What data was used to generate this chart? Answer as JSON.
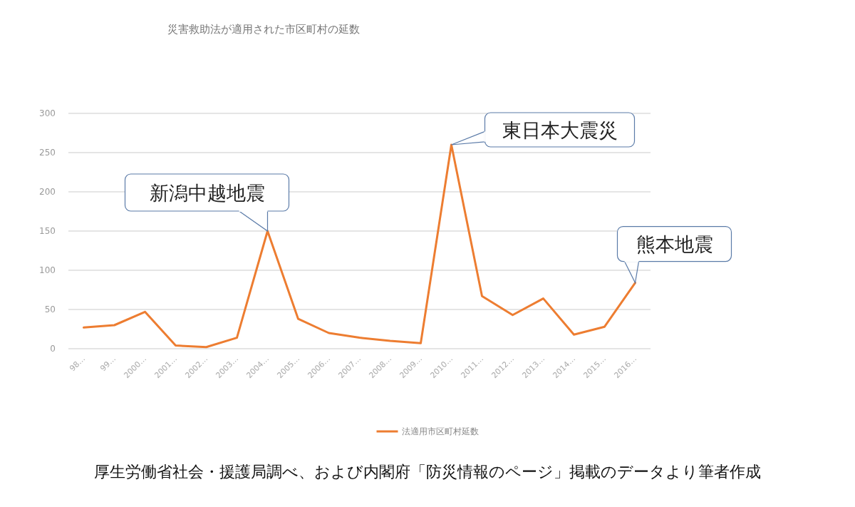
{
  "chart_data": {
    "type": "line",
    "title": "災害救助法が適用された市区町村の延数",
    "categories": [
      "98…",
      "99…",
      "2000…",
      "2001…",
      "2002…",
      "2003…",
      "2004…",
      "2005…",
      "2006…",
      "2007…",
      "2008…",
      "2009…",
      "2010…",
      "2011…",
      "2012…",
      "2013…",
      "2014…",
      "2015…",
      "2016…"
    ],
    "series": [
      {
        "name": "法適用市区町村延数",
        "color": "#ed7d31",
        "values": [
          27,
          30,
          47,
          4,
          2,
          14,
          150,
          38,
          20,
          14,
          10,
          7,
          260,
          67,
          43,
          64,
          18,
          28,
          84
        ]
      }
    ],
    "ylim": [
      0,
      300
    ],
    "yticks": [
      0,
      50,
      100,
      150,
      200,
      250,
      300
    ],
    "grid": "y",
    "legend": "bottom",
    "marker": "none",
    "line_style": "solid",
    "annotations": [
      {
        "text": "新潟中越地震",
        "x": "2004…",
        "y": 150
      },
      {
        "text": "東日本大震災",
        "x": "2010…",
        "y": 260
      },
      {
        "text": "熊本地震",
        "x": "2016…",
        "y": 84
      },
      "厚生労働省社会・援護局調べ、および内閣府「防災情報のページ」掲載のデータより筆者作成"
    ]
  }
}
